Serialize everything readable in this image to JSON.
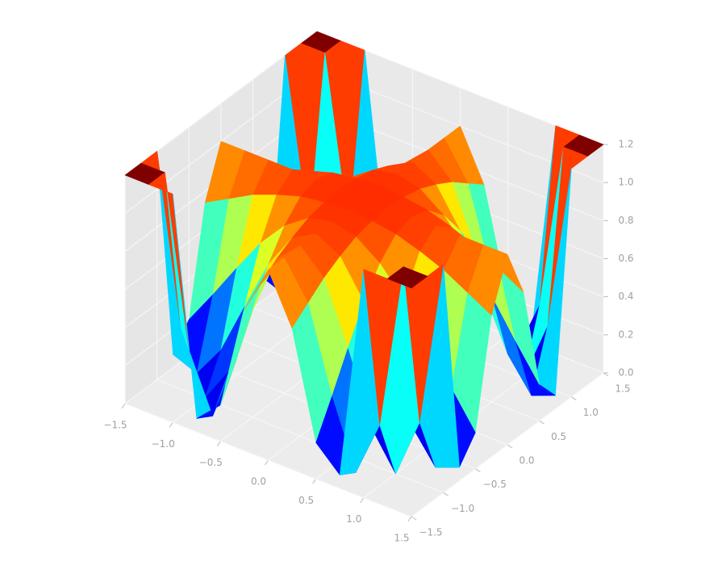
{
  "chart_data": {
    "type": "surface",
    "colormap": "jet",
    "x": [
      -1.5,
      -1.25,
      -1,
      -0.75,
      -0.5,
      -0.25,
      0,
      0.25,
      0.5,
      0.75,
      1,
      1.25,
      1.5
    ],
    "y": [
      -1.5,
      -1.25,
      -1,
      -0.75,
      -0.5,
      -0.25,
      0,
      0.25,
      0.5,
      0.75,
      1,
      1.25,
      1.5
    ],
    "z": [
      [
        1.2,
        1.2,
        1.2,
        0.07,
        0.19,
        0.74,
        1,
        0.74,
        0.19,
        0.07,
        1.2,
        1.2,
        1.2
      ],
      [
        1.2,
        1.2,
        0.32,
        0.02,
        0.37,
        0.81,
        1,
        0.81,
        0.37,
        0.02,
        0.32,
        1.2,
        1.2
      ],
      [
        1.2,
        0.32,
        0,
        0.19,
        0.56,
        0.88,
        1,
        0.88,
        0.56,
        0.19,
        0,
        0.32,
        1.2
      ],
      [
        0.07,
        0.02,
        0.19,
        0.47,
        0.74,
        0.93,
        1,
        0.93,
        0.74,
        0.47,
        0.19,
        0.02,
        0.07
      ],
      [
        0.19,
        0.37,
        0.56,
        0.74,
        0.88,
        0.97,
        1,
        0.97,
        0.88,
        0.74,
        0.56,
        0.37,
        0.19
      ],
      [
        0.74,
        0.81,
        0.88,
        0.93,
        0.97,
        0.99,
        1,
        0.99,
        0.97,
        0.93,
        0.88,
        0.81,
        0.74
      ],
      [
        1,
        1,
        1,
        1,
        1,
        1,
        1,
        1,
        1,
        1,
        1,
        1,
        1
      ],
      [
        0.74,
        0.81,
        0.88,
        0.93,
        0.97,
        0.99,
        1,
        0.99,
        0.97,
        0.93,
        0.88,
        0.81,
        0.74
      ],
      [
        0.19,
        0.37,
        0.56,
        0.74,
        0.88,
        0.97,
        1,
        0.97,
        0.88,
        0.74,
        0.56,
        0.37,
        0.19
      ],
      [
        0.07,
        0.02,
        0.19,
        0.47,
        0.74,
        0.93,
        1,
        0.93,
        0.74,
        0.47,
        0.19,
        0.02,
        0.07
      ],
      [
        1.2,
        0.32,
        0,
        0.19,
        0.56,
        0.88,
        1,
        0.88,
        0.56,
        0.19,
        0,
        0.32,
        1.2
      ],
      [
        1.2,
        1.2,
        0.32,
        0.02,
        0.37,
        0.81,
        1,
        0.81,
        0.37,
        0.02,
        0.32,
        1.2,
        1.2
      ],
      [
        1.2,
        1.2,
        1.2,
        0.07,
        0.19,
        0.74,
        1,
        0.74,
        0.19,
        0.07,
        1.2,
        1.2,
        1.2
      ]
    ],
    "xlim": [
      -1.5,
      1.5
    ],
    "ylim": [
      -1.5,
      1.5
    ],
    "zlim": [
      0,
      1.2
    ],
    "xticks": [
      {
        "value": -1.5,
        "label": "−1.5"
      },
      {
        "value": -1,
        "label": "−1.0"
      },
      {
        "value": -0.5,
        "label": "−0.5"
      },
      {
        "value": 0,
        "label": "0.0"
      },
      0.5,
      {
        "value": 1,
        "label": "1.0"
      },
      1.5
    ],
    "yticks": [
      {
        "value": -1.5,
        "label": "−1.5"
      },
      {
        "value": -1,
        "label": "−1.0"
      },
      {
        "value": -0.5,
        "label": "−0.5"
      },
      {
        "value": 0,
        "label": "0.0"
      },
      0.5,
      {
        "value": 1,
        "label": "1.0"
      },
      1.5
    ],
    "zticks": [
      {
        "value": 0,
        "label": "0.0"
      },
      0.2,
      0.4,
      0.6,
      0.8,
      {
        "value": 1,
        "label": "1.0"
      },
      1.2
    ],
    "grid": true
  }
}
